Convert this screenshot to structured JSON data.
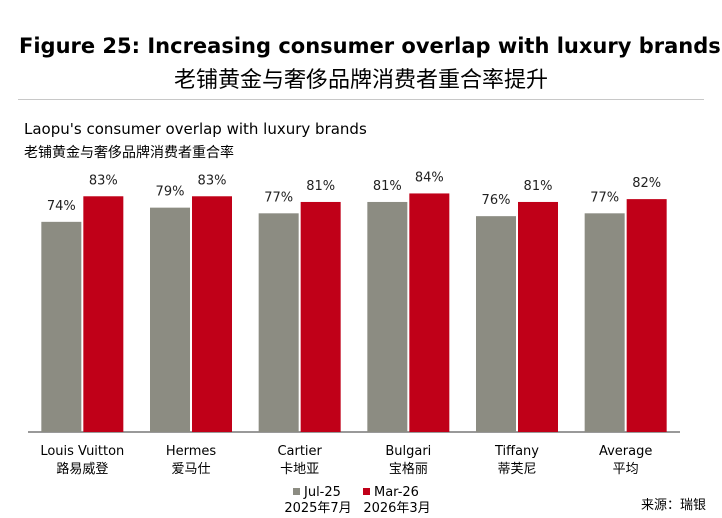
{
  "title_en": "Figure 25: Increasing consumer overlap with luxury brands",
  "title_zh": "老铺黄金与奢侈品牌消费者重合率提升",
  "source": "来源：瑞银",
  "colors": {
    "jul25": "#8c8c82",
    "mar26": "#c00018",
    "axis": "#333333",
    "rule": "#c8c8c8"
  },
  "chart_data": {
    "type": "bar",
    "title": "Laopu's consumer overlap with luxury brands",
    "subtitle": "老铺黄金与奢侈品牌消费者重合率",
    "categories": [
      {
        "en": "Louis Vuitton",
        "zh": "路易威登"
      },
      {
        "en": "Hermes",
        "zh": "爱马仕"
      },
      {
        "en": "Cartier",
        "zh": "卡地亚"
      },
      {
        "en": "Bulgari",
        "zh": "宝格丽"
      },
      {
        "en": "Tiffany",
        "zh": "蒂芙尼"
      },
      {
        "en": "Average",
        "zh": "平均"
      }
    ],
    "series": [
      {
        "name": "Jul-25",
        "name_zh": "2025年7月",
        "values": [
          74,
          79,
          77,
          81,
          76,
          77
        ],
        "labels": [
          "74%",
          "79%",
          "77%",
          "81%",
          "76%",
          "77%"
        ]
      },
      {
        "name": "Mar-26",
        "name_zh": "2026年3月",
        "values": [
          83,
          83,
          81,
          84,
          81,
          82
        ],
        "labels": [
          "83%",
          "83%",
          "81%",
          "84%",
          "81%",
          "82%"
        ]
      }
    ],
    "ylim": [
      0,
      100
    ],
    "unit": "%",
    "grid": false,
    "legend_position": "bottom"
  }
}
